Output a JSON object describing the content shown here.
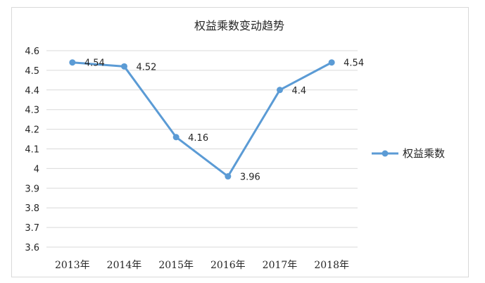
{
  "chart_data": {
    "type": "line",
    "title": "权益乘数变动趋势",
    "categories": [
      "2013年",
      "2014年",
      "2015年",
      "2016年",
      "2017年",
      "2018年"
    ],
    "series": [
      {
        "name": "权益乘数",
        "values": [
          4.54,
          4.52,
          4.16,
          3.96,
          4.4,
          4.54
        ]
      }
    ],
    "data_labels": [
      "4.54",
      "4.52",
      "4.16",
      "3.96",
      "4.4",
      "4.54"
    ],
    "yticks": [
      "3.6",
      "3.7",
      "3.8",
      "3.9",
      "4",
      "4.1",
      "4.2",
      "4.3",
      "4.4",
      "4.5",
      "4.6"
    ],
    "ylim": [
      3.6,
      4.6
    ],
    "grid": true,
    "legend_position": "right",
    "line_color": "#5b9bd5",
    "xlabel": "",
    "ylabel": ""
  }
}
